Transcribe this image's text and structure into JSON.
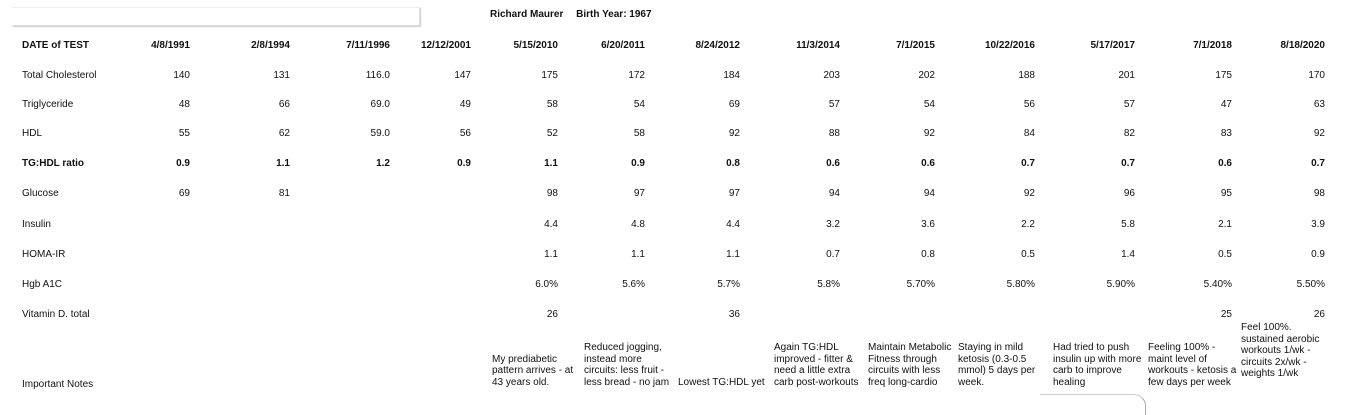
{
  "header": {
    "name": "Richard Maurer",
    "birth_year": "Birth Year: 1967"
  },
  "table": {
    "date_label": "DATE of TEST",
    "dates": [
      "4/8/1991",
      "2/8/1994",
      "7/11/1996",
      "12/12/2001",
      "5/15/2010",
      "6/20/2011",
      "8/24/2012",
      "11/3/2014",
      "7/1/2015",
      "10/22/2016",
      "5/17/2017",
      "7/1/2018",
      "8/18/2020"
    ],
    "rows": [
      {
        "label": "Total Cholesterol",
        "bold": false,
        "values": [
          "140",
          "131",
          "116.0",
          "147",
          "175",
          "172",
          "184",
          "203",
          "202",
          "188",
          "201",
          "175",
          "170"
        ]
      },
      {
        "label": "Triglyceride",
        "bold": false,
        "values": [
          "48",
          "66",
          "69.0",
          "49",
          "58",
          "54",
          "69",
          "57",
          "54",
          "56",
          "57",
          "47",
          "63"
        ]
      },
      {
        "label": "HDL",
        "bold": false,
        "values": [
          "55",
          "62",
          "59.0",
          "56",
          "52",
          "58",
          "92",
          "88",
          "92",
          "84",
          "82",
          "83",
          "92"
        ]
      },
      {
        "label": "TG:HDL ratio",
        "bold": true,
        "values": [
          "0.9",
          "1.1",
          "1.2",
          "0.9",
          "1.1",
          "0.9",
          "0.8",
          "0.6",
          "0.6",
          "0.7",
          "0.7",
          "0.6",
          "0.7"
        ]
      },
      {
        "label": "Glucose",
        "bold": false,
        "values": [
          "69",
          "81",
          "",
          "",
          "98",
          "97",
          "97",
          "94",
          "94",
          "92",
          "96",
          "95",
          "98"
        ]
      },
      {
        "label": "Insulin",
        "bold": false,
        "values": [
          "",
          "",
          "",
          "",
          "4.4",
          "4.8",
          "4.4",
          "3.2",
          "3.6",
          "2.2",
          "5.8",
          "2.1",
          "3.9"
        ]
      },
      {
        "label": "HOMA-IR",
        "bold": false,
        "values": [
          "",
          "",
          "",
          "",
          "1.1",
          "1.1",
          "1.1",
          "0.7",
          "0.8",
          "0.5",
          "1.4",
          "0.5",
          "0.9"
        ]
      },
      {
        "label": "Hgb A1C",
        "bold": false,
        "values": [
          "",
          "",
          "",
          "",
          "6.0%",
          "5.6%",
          "5.7%",
          "5.8%",
          "5.70%",
          "5.80%",
          "5.90%",
          "5.40%",
          "5.50%"
        ]
      },
      {
        "label": "Vitamin D. total",
        "bold": false,
        "values": [
          "",
          "",
          "",
          "",
          "26",
          "",
          "36",
          "",
          "",
          "",
          "",
          "25",
          "26"
        ]
      }
    ],
    "notes_label": "Important Notes",
    "notes": [
      "My prediabetic pattern arrives - at 43 years old.",
      "Reduced jogging, instead more circuits: less fruit - less bread - no jam",
      "Lowest TG:HDL yet",
      "Again TG:HDL improved - fitter & need a little extra carb post-workouts",
      "Maintain Metabolic Fitness through circuits with less freq long-cardio",
      "Staying in mild ketosis (0.3-0.5 mmol) 5 days per week.",
      "Had tried to push insulin up with more carb to improve healing",
      "Feeling 100% - maint level of workouts - ketosis a few days per week",
      "Feel 100%. sustained aerobic workouts 1/wk - circuits 2x/wk - weights 1/wk"
    ]
  }
}
